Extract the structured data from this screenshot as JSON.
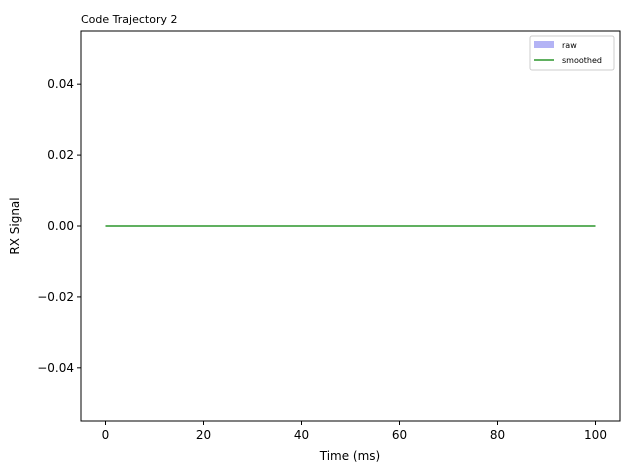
{
  "chart_data": {
    "type": "line",
    "title": "Code Trajectory 2",
    "xlabel": "Time (ms)",
    "ylabel": "RX Signal",
    "xlim": [
      -5,
      105
    ],
    "ylim": [
      -0.055,
      0.055
    ],
    "x_ticks": [
      0,
      20,
      40,
      60,
      80,
      100
    ],
    "x_tick_labels": [
      "0",
      "20",
      "40",
      "60",
      "80",
      "100"
    ],
    "y_ticks": [
      -0.04,
      -0.02,
      0.0,
      0.02,
      0.04
    ],
    "y_tick_labels": [
      "−0.04",
      "−0.02",
      "0.00",
      "0.02",
      "0.04"
    ],
    "grid": false,
    "legend_position": "top-right",
    "series": [
      {
        "name": "raw",
        "kind": "area",
        "color": "#b3b3f5",
        "x": [
          0,
          100
        ],
        "y": [
          0,
          0
        ]
      },
      {
        "name": "smoothed",
        "kind": "line",
        "color": "#008000",
        "x": [
          0,
          100
        ],
        "y": [
          0,
          0
        ]
      }
    ]
  }
}
